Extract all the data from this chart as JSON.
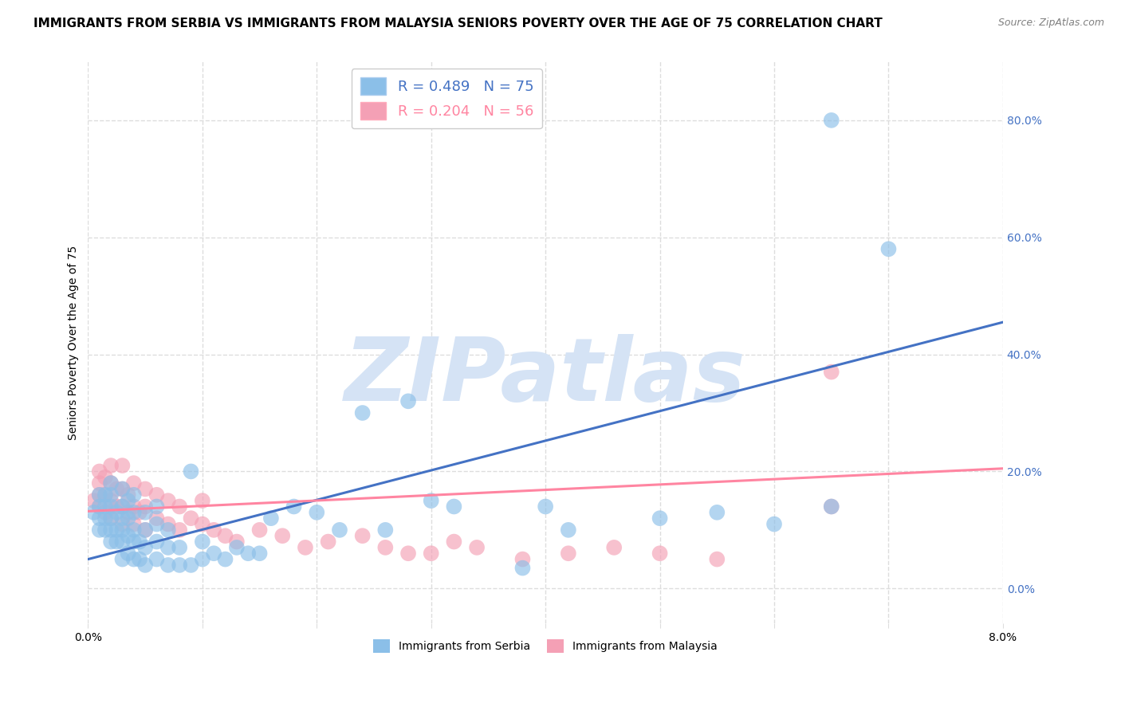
{
  "title": "IMMIGRANTS FROM SERBIA VS IMMIGRANTS FROM MALAYSIA SENIORS POVERTY OVER THE AGE OF 75 CORRELATION CHART",
  "source": "Source: ZipAtlas.com",
  "ylabel": "Seniors Poverty Over the Age of 75",
  "xlim": [
    0.0,
    0.08
  ],
  "ylim": [
    -0.06,
    0.9
  ],
  "yticks": [
    0.0,
    0.2,
    0.4,
    0.6,
    0.8
  ],
  "ytick_labels": [
    "0.0%",
    "20.0%",
    "40.0%",
    "60.0%",
    "80.0%"
  ],
  "xticks": [
    0.0,
    0.01,
    0.02,
    0.03,
    0.04,
    0.05,
    0.06,
    0.07,
    0.08
  ],
  "serbia_color": "#8BBFE8",
  "malaysia_color": "#F4A0B5",
  "serbia_line_color": "#4472C4",
  "malaysia_line_color": "#FF85A1",
  "serbia_R": 0.489,
  "serbia_N": 75,
  "malaysia_R": 0.204,
  "malaysia_N": 56,
  "legend_label_serbia": "Immigrants from Serbia",
  "legend_label_malaysia": "Immigrants from Malaysia",
  "watermark": "ZIPatlas",
  "serbia_x": [
    0.0005,
    0.001,
    0.001,
    0.001,
    0.001,
    0.0015,
    0.0015,
    0.0015,
    0.0015,
    0.002,
    0.002,
    0.002,
    0.002,
    0.002,
    0.002,
    0.0025,
    0.0025,
    0.0025,
    0.003,
    0.003,
    0.003,
    0.003,
    0.003,
    0.003,
    0.0035,
    0.0035,
    0.0035,
    0.0035,
    0.004,
    0.004,
    0.004,
    0.004,
    0.004,
    0.0045,
    0.0045,
    0.005,
    0.005,
    0.005,
    0.005,
    0.006,
    0.006,
    0.006,
    0.006,
    0.007,
    0.007,
    0.007,
    0.008,
    0.008,
    0.009,
    0.009,
    0.01,
    0.01,
    0.011,
    0.012,
    0.013,
    0.014,
    0.015,
    0.016,
    0.018,
    0.02,
    0.022,
    0.024,
    0.026,
    0.028,
    0.03,
    0.032,
    0.038,
    0.042,
    0.065,
    0.065,
    0.04,
    0.05,
    0.055,
    0.06,
    0.07
  ],
  "serbia_y": [
    0.13,
    0.1,
    0.12,
    0.14,
    0.16,
    0.1,
    0.12,
    0.14,
    0.16,
    0.08,
    0.1,
    0.12,
    0.14,
    0.16,
    0.18,
    0.08,
    0.1,
    0.13,
    0.05,
    0.08,
    0.1,
    0.12,
    0.14,
    0.17,
    0.06,
    0.09,
    0.12,
    0.15,
    0.05,
    0.08,
    0.1,
    0.13,
    0.16,
    0.05,
    0.08,
    0.04,
    0.07,
    0.1,
    0.13,
    0.05,
    0.08,
    0.11,
    0.14,
    0.04,
    0.07,
    0.1,
    0.04,
    0.07,
    0.04,
    0.2,
    0.05,
    0.08,
    0.06,
    0.05,
    0.07,
    0.06,
    0.06,
    0.12,
    0.14,
    0.13,
    0.1,
    0.3,
    0.1,
    0.32,
    0.15,
    0.14,
    0.035,
    0.1,
    0.8,
    0.14,
    0.14,
    0.12,
    0.13,
    0.11,
    0.58
  ],
  "malaysia_x": [
    0.0005,
    0.001,
    0.001,
    0.001,
    0.001,
    0.0015,
    0.0015,
    0.0015,
    0.002,
    0.002,
    0.002,
    0.002,
    0.0025,
    0.0025,
    0.003,
    0.003,
    0.003,
    0.003,
    0.0035,
    0.0035,
    0.004,
    0.004,
    0.004,
    0.0045,
    0.005,
    0.005,
    0.005,
    0.006,
    0.006,
    0.007,
    0.007,
    0.008,
    0.008,
    0.009,
    0.01,
    0.01,
    0.011,
    0.012,
    0.013,
    0.015,
    0.017,
    0.019,
    0.021,
    0.024,
    0.026,
    0.028,
    0.03,
    0.032,
    0.034,
    0.038,
    0.042,
    0.046,
    0.05,
    0.055,
    0.065,
    0.065
  ],
  "malaysia_y": [
    0.15,
    0.14,
    0.16,
    0.18,
    0.2,
    0.13,
    0.16,
    0.19,
    0.12,
    0.15,
    0.18,
    0.21,
    0.14,
    0.17,
    0.11,
    0.14,
    0.17,
    0.21,
    0.13,
    0.16,
    0.11,
    0.14,
    0.18,
    0.13,
    0.1,
    0.14,
    0.17,
    0.12,
    0.16,
    0.11,
    0.15,
    0.1,
    0.14,
    0.12,
    0.11,
    0.15,
    0.1,
    0.09,
    0.08,
    0.1,
    0.09,
    0.07,
    0.08,
    0.09,
    0.07,
    0.06,
    0.06,
    0.08,
    0.07,
    0.05,
    0.06,
    0.07,
    0.06,
    0.05,
    0.37,
    0.14
  ],
  "background_color": "#FFFFFF",
  "grid_color": "#DDDDDD",
  "title_fontsize": 11,
  "ylabel_fontsize": 10,
  "tick_fontsize": 10,
  "legend_fontsize": 13,
  "watermark_color": "#D5E3F5",
  "watermark_fontsize": 80,
  "serbia_line_x0": 0.0,
  "serbia_line_y0": 0.05,
  "serbia_line_x1": 0.08,
  "serbia_line_y1": 0.455,
  "malaysia_line_x0": 0.0,
  "malaysia_line_y0": 0.132,
  "malaysia_line_x1": 0.08,
  "malaysia_line_y1": 0.205
}
